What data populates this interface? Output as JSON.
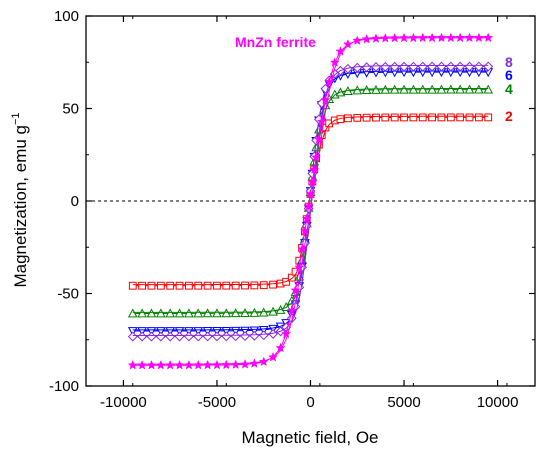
{
  "chart_data": {
    "type": "scatter",
    "xlabel": "Magnetic field, Oe",
    "ylabel_main": "Magnetization, emu g",
    "ylabel_sup": "−1",
    "xlim": [
      -12000,
      12000
    ],
    "ylim": [
      -100,
      100
    ],
    "x_ticks": [
      -10000,
      -5000,
      0,
      5000,
      10000
    ],
    "x_tick_labels": [
      "-10000",
      "-5000",
      "0",
      "5000",
      "10000"
    ],
    "y_ticks": [
      -100,
      -50,
      0,
      50,
      100
    ],
    "y_tick_labels": [
      "-100",
      "-50",
      "0",
      "50",
      "100"
    ],
    "zero_line": true,
    "grid": false,
    "series": [
      {
        "name": "MnZn ferrite",
        "color": "#ff00ff",
        "marker": "star",
        "ms": 88.5,
        "a": 0.00075,
        "p": 4,
        "vshift": 0.5
      },
      {
        "name": "8",
        "color": "#8a2be2",
        "marker": "diamond",
        "ms": 73,
        "a": 0.0013,
        "p": 3,
        "vshift": 0
      },
      {
        "name": "6",
        "color": "#0000ff",
        "marker": "triangle-down",
        "ms": 70,
        "a": 0.00135,
        "p": 3,
        "vshift": -1
      },
      {
        "name": "4",
        "color": "#008000",
        "marker": "triangle-up",
        "ms": 60.5,
        "a": 0.0014,
        "p": 3,
        "vshift": -1
      },
      {
        "name": "2",
        "color": "#ff0000",
        "marker": "square",
        "ms": 45.5,
        "a": 0.0015,
        "p": 3,
        "vshift": 0
      }
    ],
    "x_points": [
      -9500,
      -9000,
      -8500,
      -8000,
      -7500,
      -7000,
      -6500,
      -6000,
      -5500,
      -5000,
      -4500,
      -4000,
      -3500,
      -3000,
      -2500,
      -2000,
      -1600,
      -1300,
      -1000,
      -800,
      -600,
      -450,
      -300,
      -200,
      -100,
      0,
      100,
      200,
      300,
      450,
      600,
      800,
      1000,
      1300,
      1600,
      2000,
      2500,
      3000,
      3500,
      4000,
      4500,
      5000,
      5500,
      6000,
      6500,
      7000,
      7500,
      8000,
      8500,
      9000,
      9500
    ]
  }
}
